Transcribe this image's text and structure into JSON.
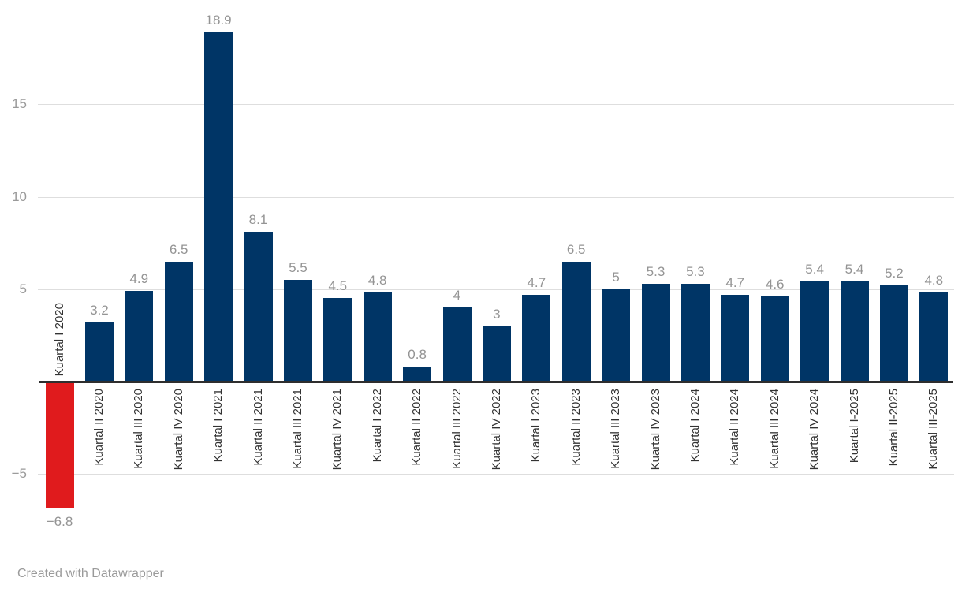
{
  "chart_data": {
    "type": "bar",
    "categories": [
      "Kuartal I 2020",
      "Kuartal II 2020",
      "Kuartal III 2020",
      "Kuartal IV 2020",
      "Kuartal I 2021",
      "Kuartal II 2021",
      "Kuartal III 2021",
      "Kuartal IV 2021",
      "Kuartal I 2022",
      "Kuartal II 2022",
      "Kuartal III 2022",
      "Kuartal IV 2022",
      "Kuartal I 2023",
      "Kuartal II 2023",
      "Kuartal III 2023",
      "Kuartal IV 2023",
      "Kuartal I 2024",
      "Kuartal II 2024",
      "Kuartal III 2024",
      "Kuartal IV 2024",
      "Kuartal I-2025",
      "Kuartal II-2025",
      "Kuartal III-2025"
    ],
    "values": [
      -6.8,
      3.2,
      4.9,
      6.5,
      18.9,
      8.1,
      5.5,
      4.5,
      4.8,
      0.8,
      4,
      3,
      4.7,
      6.5,
      5,
      5.3,
      5.3,
      4.7,
      4.6,
      5.4,
      5.4,
      5.2,
      4.8
    ],
    "display_values": [
      "−6.8",
      "3.2",
      "4.9",
      "6.5",
      "18.9",
      "8.1",
      "5.5",
      "4.5",
      "4.8",
      "0.8",
      "4",
      "3",
      "4.7",
      "6.5",
      "5",
      "5.3",
      "5.3",
      "4.7",
      "4.6",
      "5.4",
      "5.4",
      "5.2",
      "4.8"
    ],
    "title": "",
    "xlabel": "",
    "ylabel": "",
    "ylim": [
      -8.5,
      20.7
    ],
    "grid": true,
    "legend_position": "none",
    "yticks": [
      {
        "value": 15,
        "label": "15"
      },
      {
        "value": 10,
        "label": "10"
      },
      {
        "value": 5,
        "label": "5"
      },
      {
        "value": -5,
        "label": "−5"
      }
    ],
    "colors": {
      "positive_bar": "#003566",
      "negative_bar": "#e01b1d",
      "gridline": "#dedede",
      "axis_line": "#2e2e2e",
      "value_label": "#949494",
      "tick_label": "#9a9a9a",
      "category_label": "#333333"
    }
  },
  "footer": {
    "credit": "Created with Datawrapper"
  }
}
